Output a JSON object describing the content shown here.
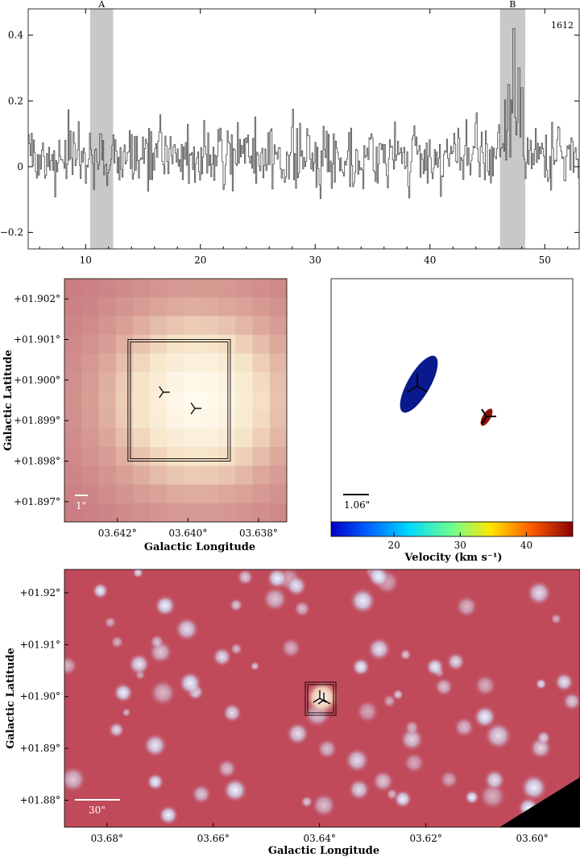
{
  "chart_data": [
    {
      "type": "line",
      "step": true,
      "id_label": "1612",
      "xlim": [
        5,
        53
      ],
      "ylim": [
        -0.25,
        0.48
      ],
      "xticks": [
        10,
        20,
        30,
        40,
        50
      ],
      "yticks": [
        -0.2,
        0,
        0.2,
        0.4
      ],
      "xtick_labels": [
        "10",
        "20",
        "30",
        "40",
        "50"
      ],
      "ytick_labels": [
        "−0.2",
        "0",
        "0.2",
        "0.4"
      ],
      "regions": [
        {
          "label": "A",
          "x0": 10.4,
          "x1": 12.4
        },
        {
          "label": "B",
          "x0": 46.1,
          "x1": 48.3
        }
      ],
      "line_color": "#555555",
      "region_color": "#c8c8c8",
      "noise_sigma": 0.05,
      "features": [
        {
          "x": 11.3,
          "y": 0.1
        },
        {
          "x": 46.8,
          "y": 0.25
        },
        {
          "x": 47.3,
          "y": 0.42
        },
        {
          "x": 47.7,
          "y": 0.3
        },
        {
          "x": 48.0,
          "y": 0.24
        }
      ]
    },
    {
      "type": "heatmap",
      "xlabel": "Galactic Longitude",
      "ylabel": "Galactic Latitude",
      "xlim": [
        3.6435,
        3.6372
      ],
      "ylim": [
        1.8965,
        1.9025
      ],
      "xtick_labels": [
        "03.642°",
        "03.640°",
        "03.638°"
      ],
      "xtick_values": [
        3.642,
        3.64,
        3.638
      ],
      "ytick_labels": [
        "+01.902°",
        "+01.901°",
        "+01.900°",
        "+01.899°",
        "+01.898°",
        "+01.897°"
      ],
      "ytick_values": [
        1.902,
        1.901,
        1.9,
        1.899,
        1.898,
        1.897
      ],
      "scalebar_label": "1\"",
      "box": {
        "lon0": 3.6417,
        "lon1": 3.6388,
        "lat0": 1.898,
        "lat1": 1.901
      },
      "markers": [
        {
          "lon": 3.6407,
          "lat": 1.8997
        },
        {
          "lon": 3.6398,
          "lat": 1.8993
        }
      ],
      "colormap": [
        "#c7787f",
        "#dba59a",
        "#f6e3c6",
        "#fffbee"
      ]
    },
    {
      "type": "scatter",
      "scalebar_label": "1.06\"",
      "colorbar_label": "Velocity (km s⁻¹)",
      "colorbar_ticks": [
        "20",
        "30",
        "40"
      ],
      "colorbar_tick_values": [
        20,
        30,
        40
      ],
      "colorbar_range": [
        10.5,
        47
      ],
      "ellipses": [
        {
          "velocity": 11.5,
          "color": "#0a1a8c"
        },
        {
          "velocity": 46.5,
          "color": "#8b1208"
        }
      ]
    },
    {
      "type": "heatmap",
      "xlabel": "Galactic Longitude",
      "ylabel": "Galactic Latitude",
      "xlim": [
        3.688,
        3.591
      ],
      "ylim": [
        1.8748,
        1.9245
      ],
      "xtick_labels": [
        "03.68°",
        "03.66°",
        "03.64°",
        "03.62°",
        "03.60°"
      ],
      "xtick_values": [
        3.68,
        3.66,
        3.64,
        3.62,
        3.6
      ],
      "ytick_labels": [
        "+01.92°",
        "+01.91°",
        "+01.90°",
        "+01.89°",
        "+01.88°"
      ],
      "ytick_values": [
        1.92,
        1.91,
        1.9,
        1.89,
        1.88
      ],
      "scalebar_label": "30\"",
      "background_color": "#c04a5a",
      "star_color": "#e8ecff"
    }
  ]
}
